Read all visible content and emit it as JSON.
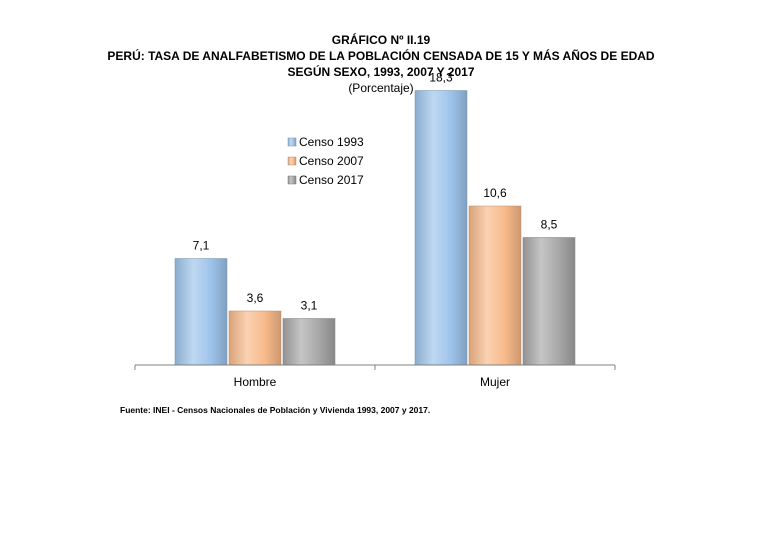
{
  "header": {
    "line1": "GRÁFICO Nº II.19",
    "line2": "PERÚ: TASA DE ANALFABETISMO DE LA POBLACIÓN CENSADA DE 15 Y MÁS AÑOS DE EDAD",
    "line3": "SEGÚN SEXO, 1993, 2007 Y 2017",
    "line4": "(Porcentaje)"
  },
  "source": "Fuente: INEI - Censos Nacionales de Población y Vivienda 1993, 2007 y 2017.",
  "chart_data": {
    "type": "bar",
    "title": "GRÁFICO Nº II.19 PERÚ: TASA DE ANALFABETISMO DE LA POBLACIÓN CENSADA DE 15 Y MÁS AÑOS DE EDAD SEGÚN SEXO, 1993, 2007 Y 2017",
    "subtitle": "(Porcentaje)",
    "categories": [
      "Hombre",
      "Mujer"
    ],
    "series": [
      {
        "name": "Censo 1993",
        "values": [
          7.1,
          18.3
        ],
        "labels": [
          "7,1",
          "18,3"
        ],
        "color": "#9dc3ea"
      },
      {
        "name": "Censo 2007",
        "values": [
          3.6,
          10.6
        ],
        "labels": [
          "3,6",
          "10,6"
        ],
        "color": "#f7b98a"
      },
      {
        "name": "Censo 2017",
        "values": [
          3.1,
          8.5
        ],
        "labels": [
          "3,1",
          "8,5"
        ],
        "color": "#a6a6a6"
      }
    ],
    "legend_position": "center-left",
    "ylim": [
      0,
      20
    ],
    "grid": false
  }
}
